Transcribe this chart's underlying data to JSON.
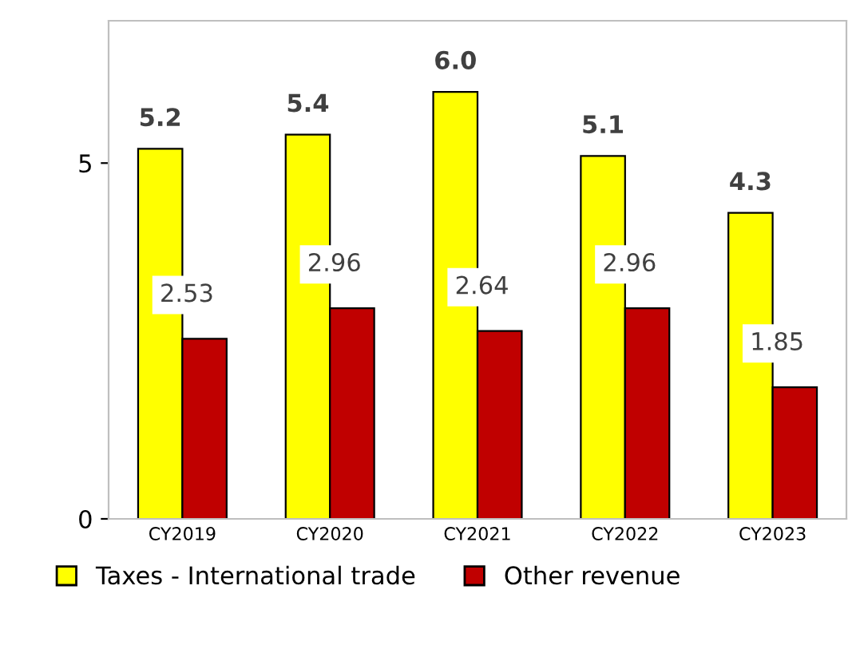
{
  "chart_data": {
    "type": "bar",
    "categories": [
      "CY2019",
      "CY2020",
      "CY2021",
      "CY2022",
      "CY2023"
    ],
    "series": [
      {
        "name": "Taxes - International trade",
        "color": "#ffff00",
        "values": [
          5.2,
          5.4,
          6.0,
          5.1,
          4.3
        ],
        "value_labels": [
          "5.2",
          "5.4",
          "6.0",
          "5.1",
          "4.3"
        ]
      },
      {
        "name": "Other revenue",
        "color": "#c00000",
        "values": [
          2.53,
          2.96,
          2.64,
          2.96,
          1.85
        ],
        "value_labels": [
          "2.53",
          "2.96",
          "2.64",
          "2.96",
          "1.85"
        ]
      }
    ],
    "ylim": [
      0,
      7
    ],
    "yticks": [
      0,
      5
    ],
    "grid": false,
    "legend": "bottom"
  }
}
